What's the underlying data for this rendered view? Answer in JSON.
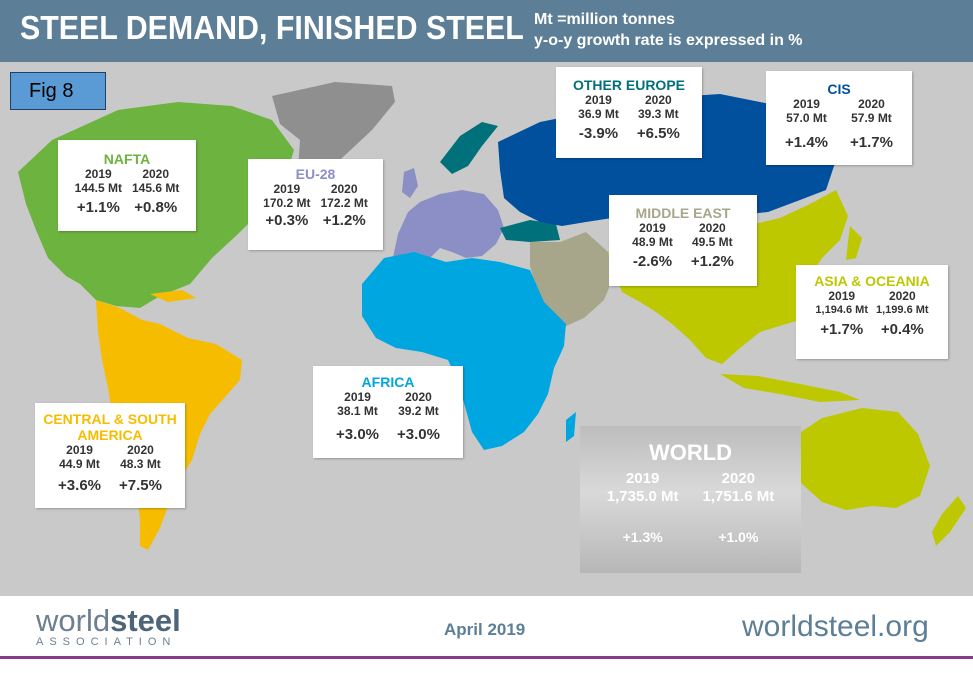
{
  "header": {
    "title": "STEEL DEMAND, FINISHED STEEL",
    "note1": "Mt =million tonnes",
    "note2": "y-o-y growth rate is expressed in %"
  },
  "figure_label": "Fig 8",
  "colors": {
    "nafta": "#6db33f",
    "eu28": "#8b8fc6",
    "other_europe": "#00707a",
    "cis": "#00509e",
    "middle_east": "#a8a68a",
    "asia_oceania": "#bdc800",
    "africa": "#00a6e0",
    "csa": "#f6bd00",
    "greenland": "#8f8f8f",
    "header": "#5c7f97"
  },
  "regions": {
    "nafta": {
      "name": "NAFTA",
      "y1": "2019",
      "y2": "2020",
      "v1": "144.5 Mt",
      "v2": "145.6 Mt",
      "g1": "+1.1%",
      "g2": "+0.8%"
    },
    "eu28": {
      "name": "EU-28",
      "y1": "2019",
      "y2": "2020",
      "v1": "170.2 Mt",
      "v2": "172.2 Mt",
      "g1": "+0.3%",
      "g2": "+1.2%"
    },
    "other_europe": {
      "name": "OTHER EUROPE",
      "y1": "2019",
      "y2": "2020",
      "v1": "36.9 Mt",
      "v2": "39.3 Mt",
      "g1": "-3.9%",
      "g2": "+6.5%"
    },
    "cis": {
      "name": "CIS",
      "y1": "2019",
      "y2": "2020",
      "v1": "57.0 Mt",
      "v2": "57.9 Mt",
      "g1": "+1.4%",
      "g2": "+1.7%"
    },
    "middle_east": {
      "name": "MIDDLE EAST",
      "y1": "2019",
      "y2": "2020",
      "v1": "48.9 Mt",
      "v2": "49.5 Mt",
      "g1": "-2.6%",
      "g2": "+1.2%"
    },
    "asia_oceania": {
      "name": "ASIA & OCEANIA",
      "y1": "2019",
      "y2": "2020",
      "v1": "1,194.6 Mt",
      "v2": "1,199.6 Mt",
      "g1": "+1.7%",
      "g2": "+0.4%"
    },
    "africa": {
      "name": "AFRICA",
      "y1": "2019",
      "y2": "2020",
      "v1": "38.1 Mt",
      "v2": "39.2 Mt",
      "g1": "+3.0%",
      "g2": "+3.0%"
    },
    "csa": {
      "name1": "CENTRAL & SOUTH",
      "name2": "AMERICA",
      "y1": "2019",
      "y2": "2020",
      "v1": "44.9 Mt",
      "v2": "48.3 Mt",
      "g1": "+3.6%",
      "g2": "+7.5%"
    }
  },
  "world": {
    "name": "WORLD",
    "y1": "2019",
    "y2": "2020",
    "v1": "1,735.0 Mt",
    "v2": "1,751.6 Mt",
    "g1": "+1.3%",
    "g2": "+1.0%"
  },
  "footer": {
    "logo_light": "world",
    "logo_bold": "steel",
    "logo_sub": "ASSOCIATION",
    "date": "April 2019",
    "url": "worldsteel.org"
  }
}
